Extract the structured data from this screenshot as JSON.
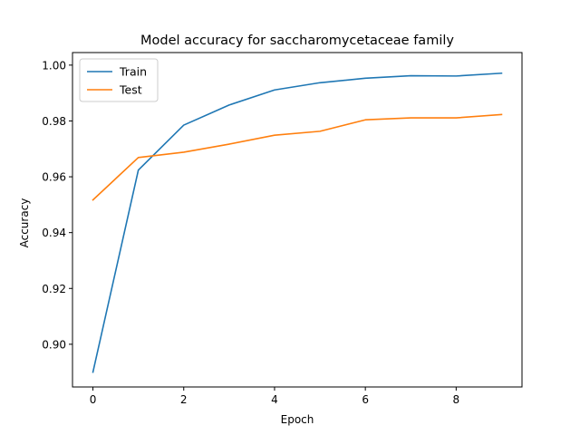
{
  "chart_data": {
    "type": "line",
    "title": "Model accuracy for saccharomycetaceae family",
    "xlabel": "Epoch",
    "ylabel": "Accuracy",
    "xlim": [
      -0.45,
      9.45
    ],
    "ylim": [
      0.8847,
      1.0045
    ],
    "xticks": [
      0,
      2,
      4,
      6,
      8
    ],
    "xtick_labels": [
      "0",
      "2",
      "4",
      "6",
      "8"
    ],
    "yticks": [
      0.9,
      0.92,
      0.94,
      0.96,
      0.98,
      1.0
    ],
    "ytick_labels": [
      "0.90",
      "0.92",
      "0.94",
      "0.96",
      "0.98",
      "1.00"
    ],
    "x": [
      0,
      1,
      2,
      3,
      4,
      5,
      6,
      7,
      8,
      9
    ],
    "series": [
      {
        "name": "Train",
        "color": "#1f77b4",
        "values": [
          0.89,
          0.9624,
          0.9785,
          0.9857,
          0.9911,
          0.9937,
          0.9953,
          0.9962,
          0.9961,
          0.9971
        ]
      },
      {
        "name": "Test",
        "color": "#ff7f0e",
        "values": [
          0.9517,
          0.9669,
          0.9688,
          0.9717,
          0.9749,
          0.9763,
          0.9804,
          0.9811,
          0.9811,
          0.9823
        ]
      }
    ],
    "grid": false,
    "legend": "upper-left"
  }
}
